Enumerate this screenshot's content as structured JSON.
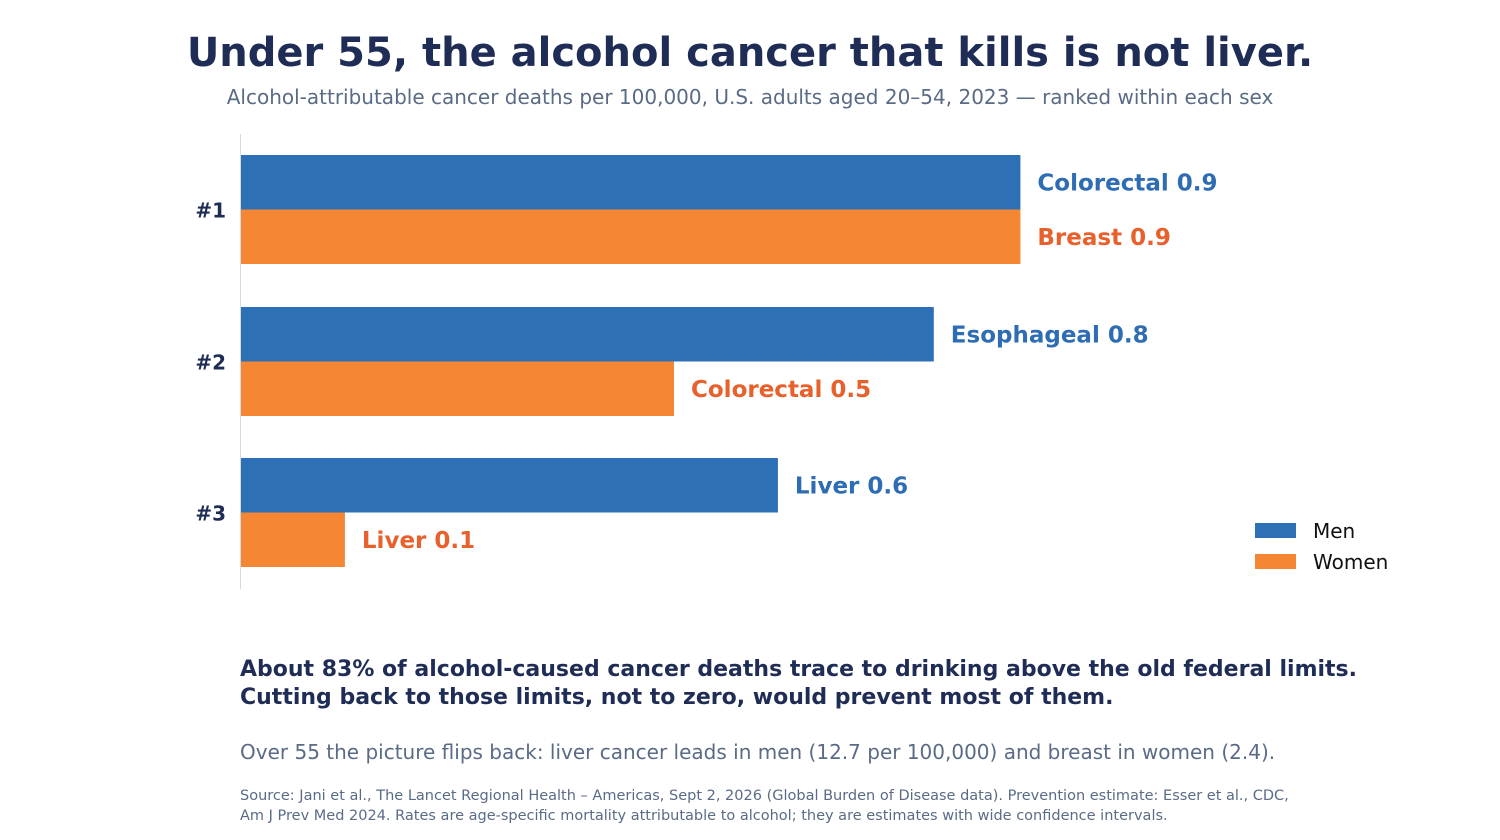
{
  "header": {
    "title": "Under 55, the alcohol cancer that kills is not liver.",
    "subtitle": "Alcohol-attributable cancer deaths per 100,000, U.S. adults aged 20–54, 2023 — ranked within each sex"
  },
  "colors": {
    "men": "#2e70b5",
    "women": "#f58634",
    "men_label": "#2e6db3",
    "women_label": "#e8602c",
    "axis": "#d9d9d9"
  },
  "chart_data": {
    "type": "bar",
    "orientation": "horizontal",
    "categories": [
      "#1",
      "#2",
      "#3"
    ],
    "series": [
      {
        "name": "Men",
        "labels": [
          "Colorectal",
          "Esophageal",
          "Liver"
        ],
        "values": [
          0.9,
          0.8,
          0.62
        ]
      },
      {
        "name": "Women",
        "labels": [
          "Breast",
          "Colorectal",
          "Liver"
        ],
        "values": [
          0.9,
          0.5,
          0.12
        ]
      }
    ],
    "display_values": {
      "Men": [
        "0.9",
        "0.8",
        "0.6"
      ],
      "Women": [
        "0.9",
        "0.5",
        "0.1"
      ]
    },
    "xlim": [
      0,
      1.2
    ],
    "grid": false,
    "legend": "bottom-right"
  },
  "legend": {
    "items": [
      {
        "label": "Men",
        "color_key": "men"
      },
      {
        "label": "Women",
        "color_key": "women"
      }
    ]
  },
  "footer": {
    "takeaway_line1": "About 83% of alcohol-caused cancer deaths trace to drinking above the old federal limits.",
    "takeaway_line2": "Cutting back to those limits, not to zero, would prevent most of them.",
    "note": "Over 55 the picture flips back: liver cancer leads in men (12.7 per 100,000) and breast in women (2.4).",
    "source_line1": "Source: Jani et al., The Lancet Regional Health – Americas, Sept 2, 2026 (Global Burden of Disease data). Prevention estimate: Esser et al., CDC,",
    "source_line2": "Am J Prev Med 2024. Rates are age-specific mortality attributable to alcohol; they are estimates with wide confidence intervals."
  }
}
